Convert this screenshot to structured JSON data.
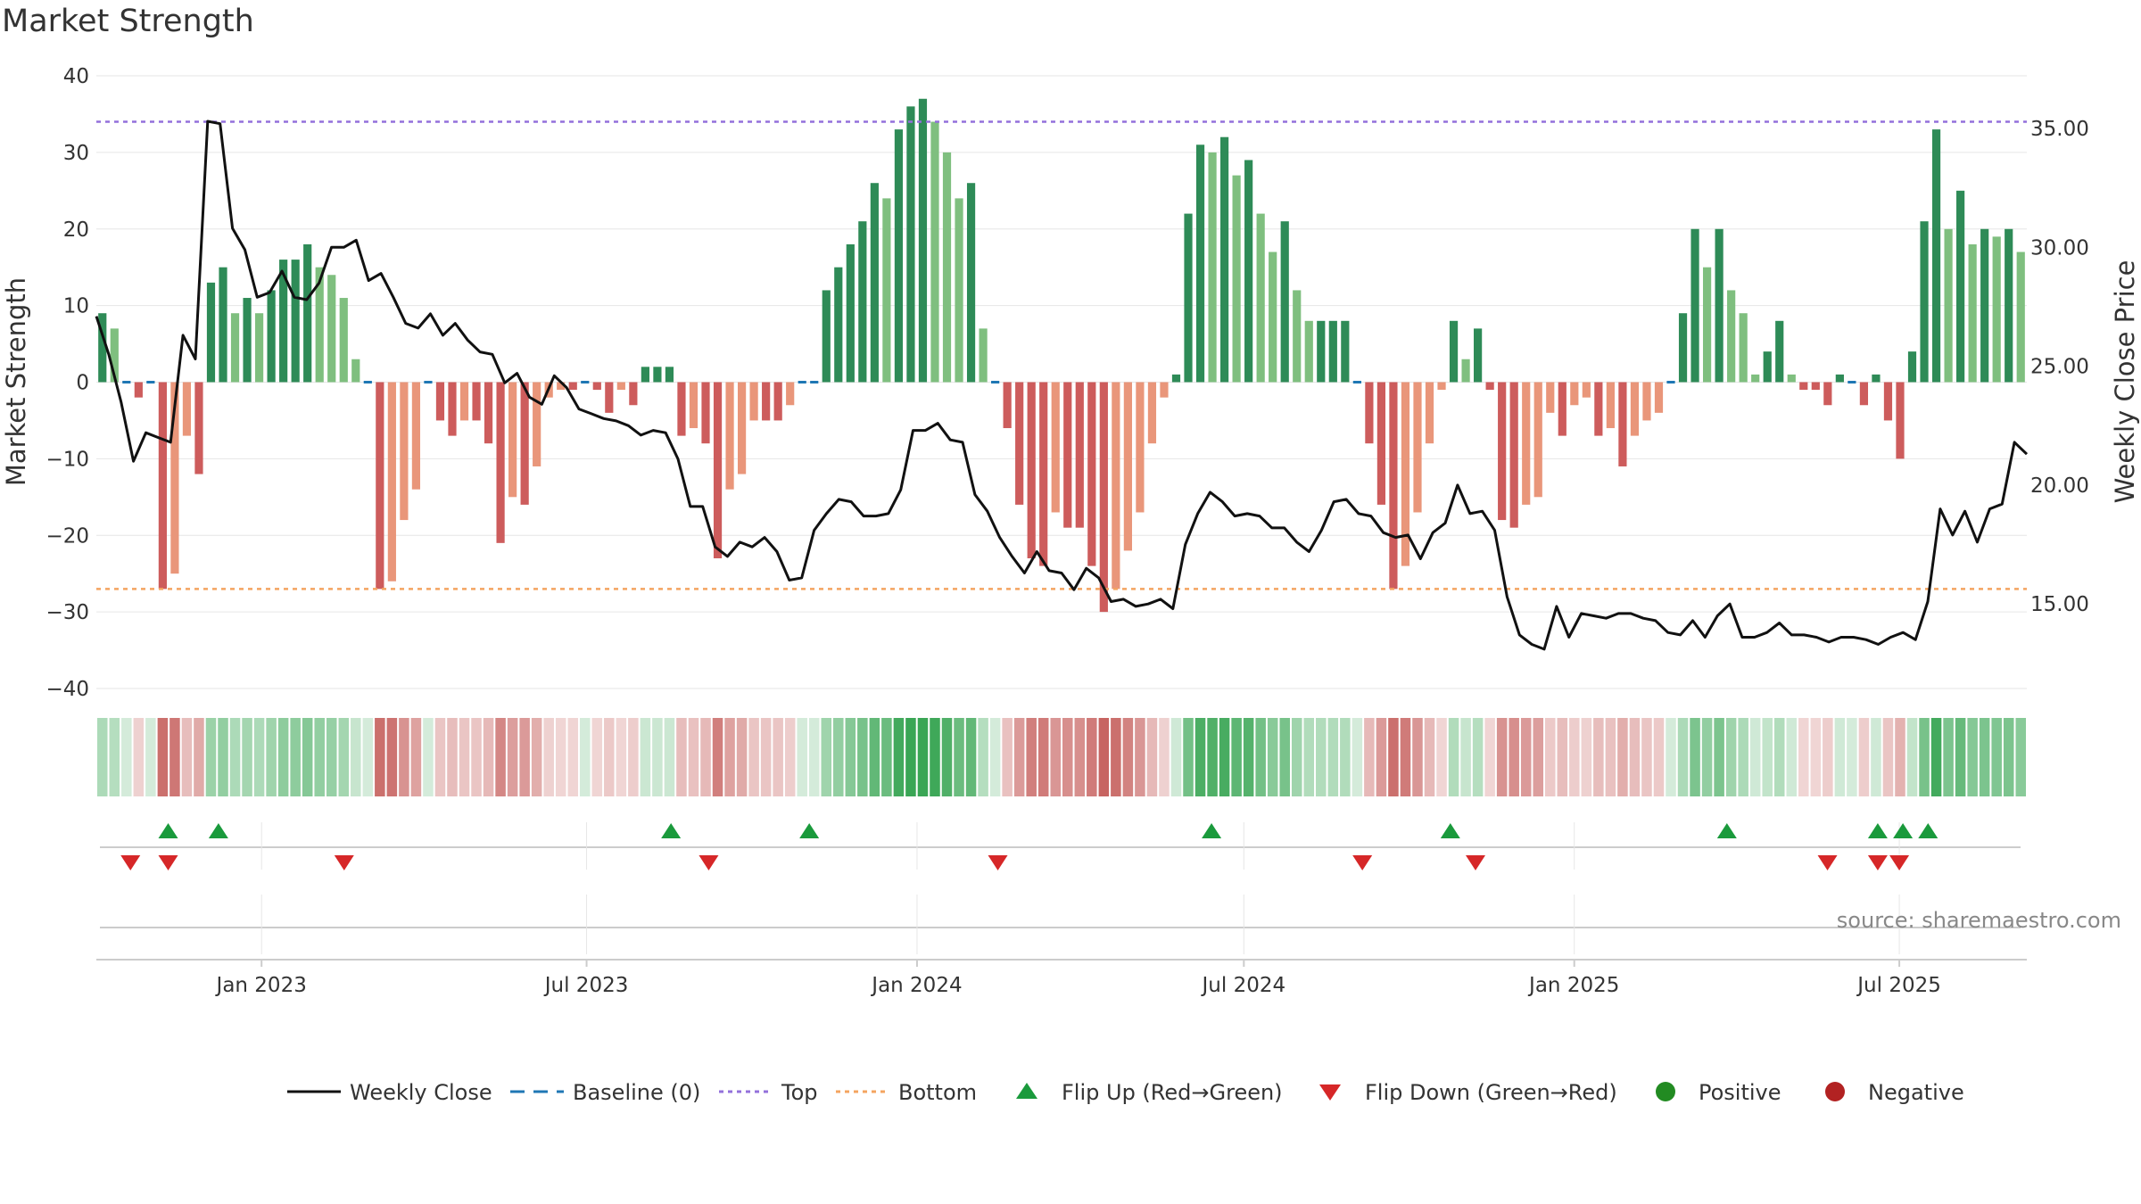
{
  "chart_data": {
    "type": "bar",
    "title": "Market Strength",
    "ylabel": "Market Strength",
    "y2label": "Weekly Close Price",
    "ylim": [
      -40,
      40
    ],
    "y2lim": [
      12.5,
      35.0
    ],
    "yticks": [
      40,
      30,
      20,
      10,
      0,
      -10,
      -20,
      -30,
      -40
    ],
    "y2ticks": [
      "35.00",
      "30.00",
      "25.00",
      "20.00",
      "15.00"
    ],
    "top_line": 34,
    "bottom_line": -27,
    "x_start": "2022-10-01",
    "x_end": "2025-09-10",
    "x_ticks": [
      {
        "label": "Jan 2023",
        "date": "2023-01-01"
      },
      {
        "label": "Jul 2023",
        "date": "2023-07-01"
      },
      {
        "label": "Jan 2024",
        "date": "2024-01-01"
      },
      {
        "label": "Jul 2024",
        "date": "2024-07-01"
      },
      {
        "label": "Jan 2025",
        "date": "2025-01-01"
      },
      {
        "label": "Jul 2025",
        "date": "2025-07-01"
      }
    ],
    "strength": [
      9,
      7,
      0,
      -2,
      0,
      -27,
      -25,
      -7,
      -12,
      13,
      15,
      9,
      11,
      9,
      12,
      16,
      16,
      18,
      15,
      14,
      11,
      3,
      0,
      -27,
      -26,
      -18,
      -14,
      0,
      -5,
      -7,
      -5,
      -5,
      -8,
      -21,
      -15,
      -16,
      -11,
      -2,
      -1,
      -1,
      0,
      -1,
      -4,
      -1,
      -3,
      2,
      2,
      2,
      -7,
      -6,
      -8,
      -23,
      -14,
      -12,
      -5,
      -5,
      -5,
      -3,
      0,
      0,
      12,
      15,
      18,
      21,
      26,
      24,
      33,
      36,
      37,
      34,
      30,
      24,
      26,
      7,
      0,
      -6,
      -16,
      -23,
      -24,
      -17,
      -19,
      -19,
      -24,
      -30,
      -27,
      -22,
      -17,
      -8,
      -2,
      1,
      22,
      31,
      30,
      32,
      27,
      29,
      22,
      17,
      21,
      12,
      8,
      8,
      8,
      8,
      0,
      -8,
      -16,
      -27,
      -24,
      -17,
      -8,
      -1,
      8,
      3,
      7,
      -1,
      -18,
      -19,
      -16,
      -15,
      -4,
      -7,
      -3,
      -2,
      -7,
      -6,
      -11,
      -7,
      -5,
      -4,
      0,
      9,
      20,
      15,
      20,
      12,
      9,
      1,
      4,
      8,
      1,
      -1,
      -1,
      -3,
      1,
      0,
      -3,
      1,
      -5,
      -10,
      4,
      21,
      33,
      20,
      25,
      18,
      20,
      19,
      20,
      17
    ],
    "close": [
      27.1,
      25.5,
      23.5,
      21.0,
      22.2,
      22.0,
      21.8,
      26.3,
      25.3,
      35.3,
      35.2,
      30.8,
      29.9,
      27.9,
      28.1,
      29.0,
      27.9,
      27.8,
      28.5,
      30.0,
      30.0,
      30.3,
      28.6,
      28.9,
      27.9,
      26.8,
      26.6,
      27.2,
      26.3,
      26.8,
      26.1,
      25.6,
      25.5,
      24.3,
      24.7,
      23.7,
      23.4,
      24.6,
      24.1,
      23.2,
      23.0,
      22.8,
      22.7,
      22.5,
      22.1,
      22.3,
      22.2,
      21.1,
      19.1,
      19.1,
      17.4,
      17.0,
      17.6,
      17.4,
      17.8,
      17.2,
      16.0,
      16.1,
      18.1,
      18.8,
      19.4,
      19.3,
      18.7,
      18.7,
      18.8,
      19.8,
      22.3,
      22.3,
      22.6,
      21.9,
      21.8,
      19.6,
      18.9,
      17.8,
      17.0,
      16.3,
      17.2,
      16.4,
      16.3,
      15.6,
      16.5,
      16.1,
      15.1,
      15.2,
      14.9,
      15.0,
      15.2,
      14.8,
      17.5,
      18.8,
      19.7,
      19.3,
      18.7,
      18.8,
      18.7,
      18.2,
      18.2,
      17.6,
      17.2,
      18.1,
      19.3,
      19.4,
      18.8,
      18.7,
      18.0,
      17.8,
      17.9,
      16.9,
      18.0,
      18.4,
      20.0,
      18.8,
      18.9,
      18.1,
      15.3,
      13.7,
      13.3,
      13.1,
      14.9,
      13.6,
      14.6,
      14.5,
      14.4,
      14.6,
      14.6,
      14.4,
      14.3,
      13.8,
      13.7,
      14.3,
      13.6,
      14.5,
      15.0,
      13.6,
      13.6,
      13.8,
      14.2,
      13.7,
      13.7,
      13.6,
      13.4,
      13.6,
      13.6,
      13.5,
      13.3,
      13.6,
      13.8,
      13.5,
      15.1,
      19.0,
      17.9,
      18.9,
      17.6,
      19.0,
      19.2,
      21.8,
      21.3
    ],
    "flip_up_dates": [
      "2022-11-10",
      "2022-12-08",
      "2023-08-17",
      "2023-11-02",
      "2024-06-13",
      "2024-10-24",
      "2025-03-27",
      "2025-06-19",
      "2025-07-03",
      "2025-07-17"
    ],
    "flip_down_dates": [
      "2022-10-20",
      "2022-11-10",
      "2023-02-16",
      "2023-09-07",
      "2024-02-15",
      "2024-09-05",
      "2024-11-07",
      "2025-05-22",
      "2025-06-19",
      "2025-07-01"
    ],
    "colors": {
      "strong_up": "#2e8b57",
      "weak_up": "#7fbf7f",
      "strong_down": "#cd5c5c",
      "weak_down": "#e9967a",
      "close_line": "#111111",
      "top_line": "#9370db",
      "bottom_line": "#f4a460",
      "baseline": "#1f77b4",
      "flip_up": "#1a9a3c",
      "flip_down": "#d62728",
      "positive": "#228b22",
      "negative": "#b22222"
    },
    "legend": [
      {
        "type": "line",
        "label": "Weekly Close"
      },
      {
        "type": "dash",
        "label": "Baseline (0)"
      },
      {
        "type": "dot-purple",
        "label": "Top"
      },
      {
        "type": "dot-orange",
        "label": "Bottom"
      },
      {
        "type": "tri-up",
        "label": "Flip Up (Red→Green)"
      },
      {
        "type": "tri-down",
        "label": "Flip Down (Green→Red)"
      },
      {
        "type": "circle-green",
        "label": "Positive"
      },
      {
        "type": "circle-red",
        "label": "Negative"
      }
    ],
    "source": "source: sharemaestro.com",
    "legend_position": "bottom",
    "grid": true
  }
}
